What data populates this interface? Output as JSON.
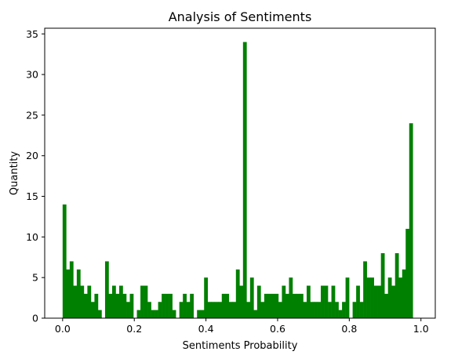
{
  "chart_data": {
    "type": "bar",
    "title": "Analysis of Sentiments",
    "xlabel": "Sentiments Probability",
    "ylabel": "Quantity",
    "xlim": [
      -0.05,
      1.04
    ],
    "ylim": [
      0,
      35.7
    ],
    "xticks": [
      0.0,
      0.2,
      0.4,
      0.6,
      0.8,
      1.0
    ],
    "xtick_labels": [
      "0.0",
      "0.2",
      "0.4",
      "0.6",
      "0.8",
      "1.0"
    ],
    "yticks": [
      0,
      5,
      10,
      15,
      20,
      25,
      30,
      35
    ],
    "ytick_labels": [
      "0",
      "5",
      "10",
      "15",
      "20",
      "25",
      "30",
      "35"
    ],
    "grid": false,
    "bar_color": "#008000",
    "bins": {
      "start": 0.0,
      "width": 0.00987
    },
    "values": [
      14,
      6,
      7,
      4,
      6,
      4,
      3,
      4,
      2,
      3,
      1,
      0,
      7,
      3,
      4,
      3,
      4,
      3,
      2,
      3,
      0,
      1,
      4,
      4,
      2,
      1,
      1,
      2,
      3,
      3,
      3,
      1,
      0,
      2,
      3,
      2,
      3,
      0,
      1,
      1,
      5,
      2,
      2,
      2,
      2,
      3,
      3,
      2,
      2,
      6,
      4,
      34,
      2,
      5,
      1,
      4,
      2,
      3,
      3,
      3,
      3,
      2,
      4,
      3,
      5,
      3,
      3,
      3,
      2,
      4,
      2,
      2,
      2,
      4,
      4,
      2,
      4,
      2,
      1,
      2,
      5,
      0,
      2,
      4,
      2,
      7,
      5,
      5,
      4,
      4,
      8,
      3,
      5,
      4,
      8,
      5,
      6,
      11,
      24
    ]
  }
}
